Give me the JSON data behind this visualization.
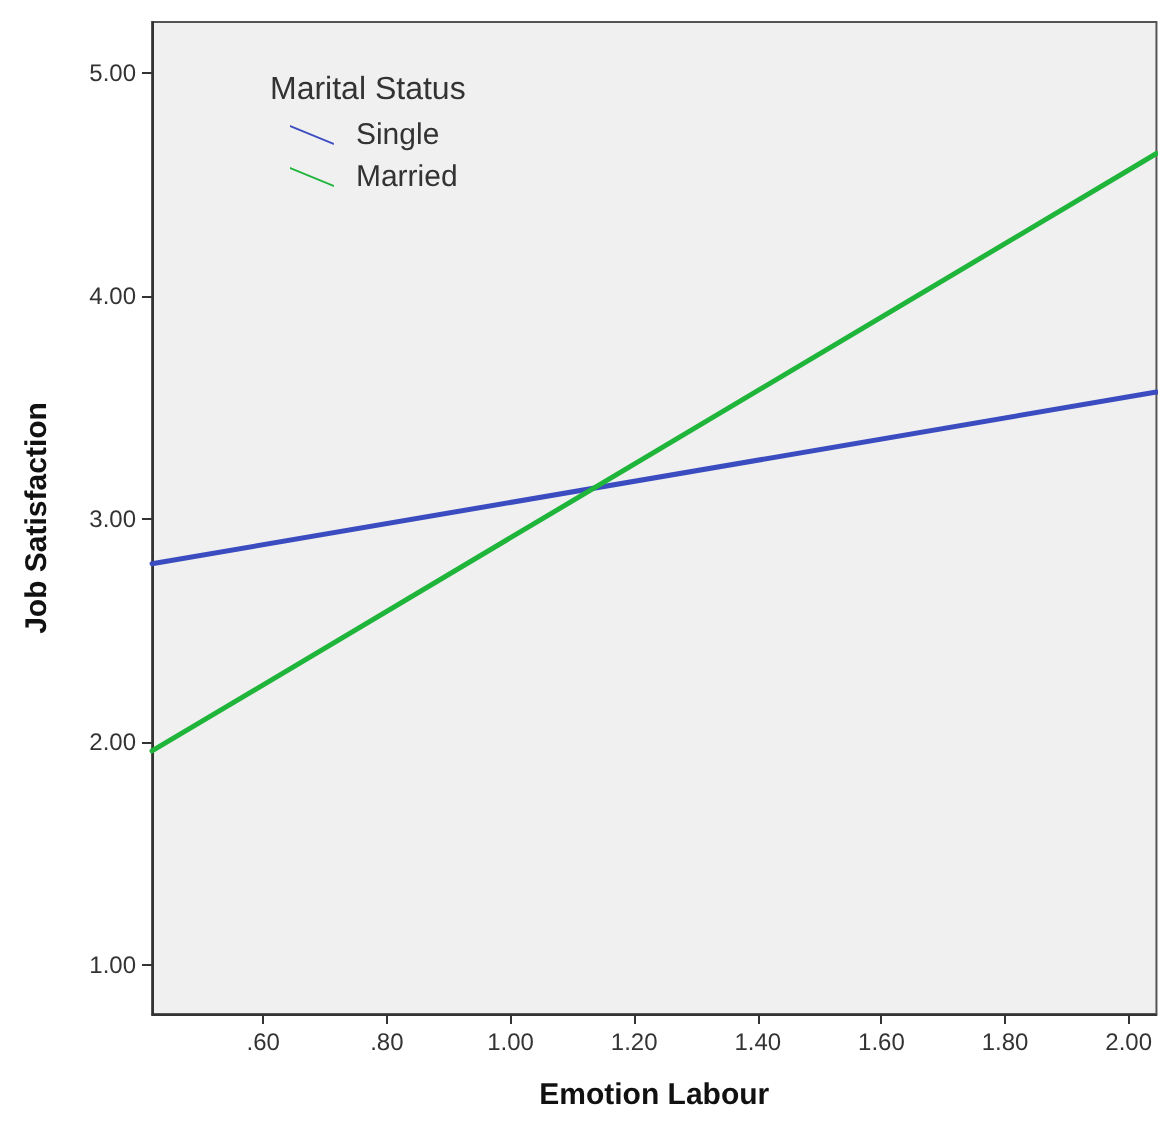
{
  "chart_data": {
    "type": "line",
    "xlabel": "Emotion Labour",
    "ylabel": "Job Satisfaction",
    "legend_title": "Marital Status",
    "legend": "top left",
    "grid": false,
    "marker": "none",
    "line_style": "solid",
    "x": [
      0.42,
      2.045
    ],
    "series": [
      {
        "name": "Single",
        "color": "#3b4cc0",
        "values": [
          2.8,
          3.57
        ]
      },
      {
        "name": "Married",
        "color": "#1fb53a",
        "values": [
          1.96,
          4.64
        ]
      }
    ],
    "xlim": [
      0.42,
      2.045
    ],
    "xticks": [
      {
        "value": 0.6,
        "label": ".60"
      },
      {
        "value": 0.8,
        "label": ".80"
      },
      {
        "value": 1.0,
        "label": "1.00"
      },
      {
        "value": 1.2,
        "label": "1.20"
      },
      {
        "value": 1.4,
        "label": "1.40"
      },
      {
        "value": 1.6,
        "label": "1.60"
      },
      {
        "value": 1.8,
        "label": "1.80"
      },
      {
        "value": 2.0,
        "label": "2.00"
      }
    ],
    "ylim": [
      0.78,
      5.23
    ],
    "yticks": [
      {
        "value": 1,
        "label": "1.00"
      },
      {
        "value": 2,
        "label": "2.00"
      },
      {
        "value": 3,
        "label": "3.00"
      },
      {
        "value": 4,
        "label": "4.00"
      },
      {
        "value": 5,
        "label": "5.00"
      }
    ]
  }
}
